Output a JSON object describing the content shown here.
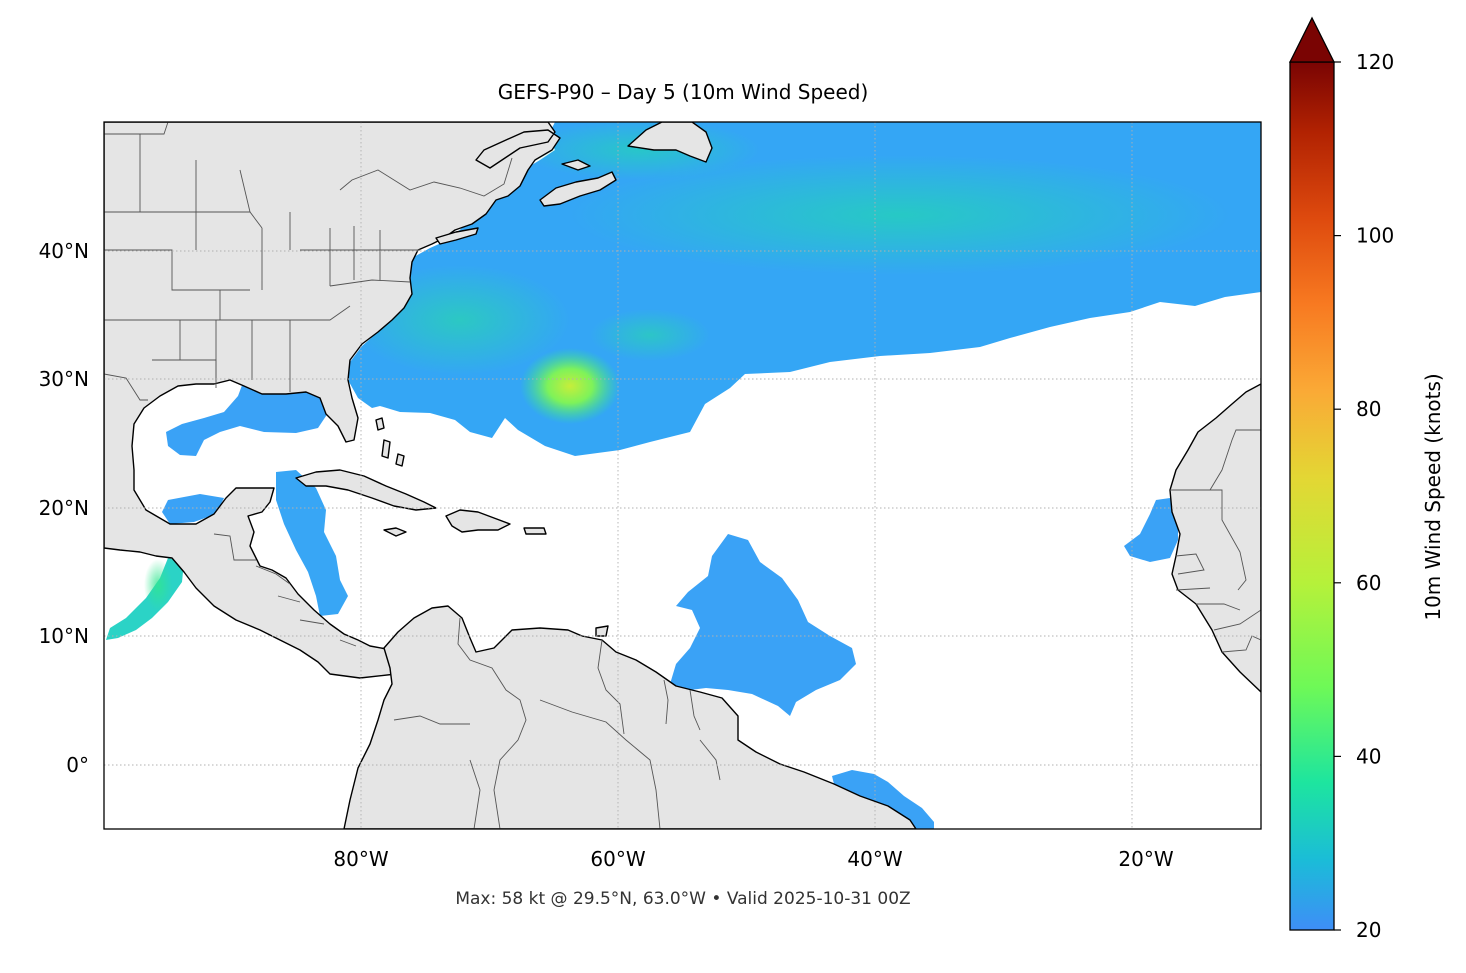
{
  "title": "GEFS-P90 – Day 5 (10m Wind Speed)",
  "footer": "Max: 58 kt @ 29.5°N, 63.0°W • Valid 2025-10-31 00Z",
  "colors": {
    "land": "#e5e5e5",
    "ocean": "#ffffff",
    "coastline": "#000000",
    "borders": "#555555",
    "grid": "#b0b0b0",
    "text": "#000000",
    "footer_text": "#333333"
  },
  "map": {
    "projection": "PlateCarree",
    "lon_range": [
      -100,
      -10
    ],
    "lat_range": [
      -5,
      50
    ],
    "x_ticks": [
      {
        "lon": -80,
        "label": "80°W"
      },
      {
        "lon": -60,
        "label": "60°W"
      },
      {
        "lon": -40,
        "label": "40°W"
      },
      {
        "lon": -20,
        "label": "20°W"
      }
    ],
    "y_ticks": [
      {
        "lat": 40,
        "label": "40°N"
      },
      {
        "lat": 30,
        "label": "30°N"
      },
      {
        "lat": 20,
        "label": "20°N"
      },
      {
        "lat": 10,
        "label": "10°N"
      },
      {
        "lat": 0,
        "label": "0°"
      }
    ],
    "grid": true
  },
  "colorbar": {
    "label": "10m Wind Speed (knots)",
    "min": 20,
    "max": 120,
    "extend": "max",
    "ticks": [
      {
        "value": 20,
        "label": "20"
      },
      {
        "value": 40,
        "label": "40"
      },
      {
        "value": 60,
        "label": "60"
      },
      {
        "value": 80,
        "label": "80"
      },
      {
        "value": 100,
        "label": "100"
      },
      {
        "value": 120,
        "label": "120"
      }
    ],
    "colormap": "turbo"
  },
  "chart_data": {
    "type": "heatmap",
    "variable": "10m Wind Speed",
    "units": "knots",
    "threshold_min": 20,
    "max_value": 58,
    "max_location": {
      "lat": 29.5,
      "lon": -63.0
    },
    "regions": [
      {
        "lon_range": [
          -72,
          -10
        ],
        "lat_range": [
          36,
          50
        ],
        "typical_value": 30
      },
      {
        "lon_range": [
          -72,
          -45
        ],
        "lat_range": [
          26,
          36
        ],
        "typical_value": 28
      },
      {
        "lon_range": [
          -66,
          -60
        ],
        "lat_range": [
          27,
          32
        ],
        "typical_value": 50
      },
      {
        "lon_range": [
          -92,
          -82
        ],
        "lat_range": [
          26,
          30
        ],
        "typical_value": 23
      },
      {
        "lon_range": [
          -53,
          -44
        ],
        "lat_range": [
          3,
          18
        ],
        "typical_value": 22
      },
      {
        "lon_range": [
          -18,
          -15
        ],
        "lat_range": [
          16,
          21
        ],
        "typical_value": 24
      },
      {
        "lon_range": [
          -98,
          -94
        ],
        "lat_range": [
          10,
          16
        ],
        "typical_value": 36
      },
      {
        "lon_range": [
          -40,
          -36
        ],
        "lat_range": [
          -5,
          -1
        ],
        "typical_value": 23
      },
      {
        "lon_range": [
          -82,
          -81
        ],
        "lat_range": [
          13,
          20
        ],
        "typical_value": 24
      }
    ]
  }
}
